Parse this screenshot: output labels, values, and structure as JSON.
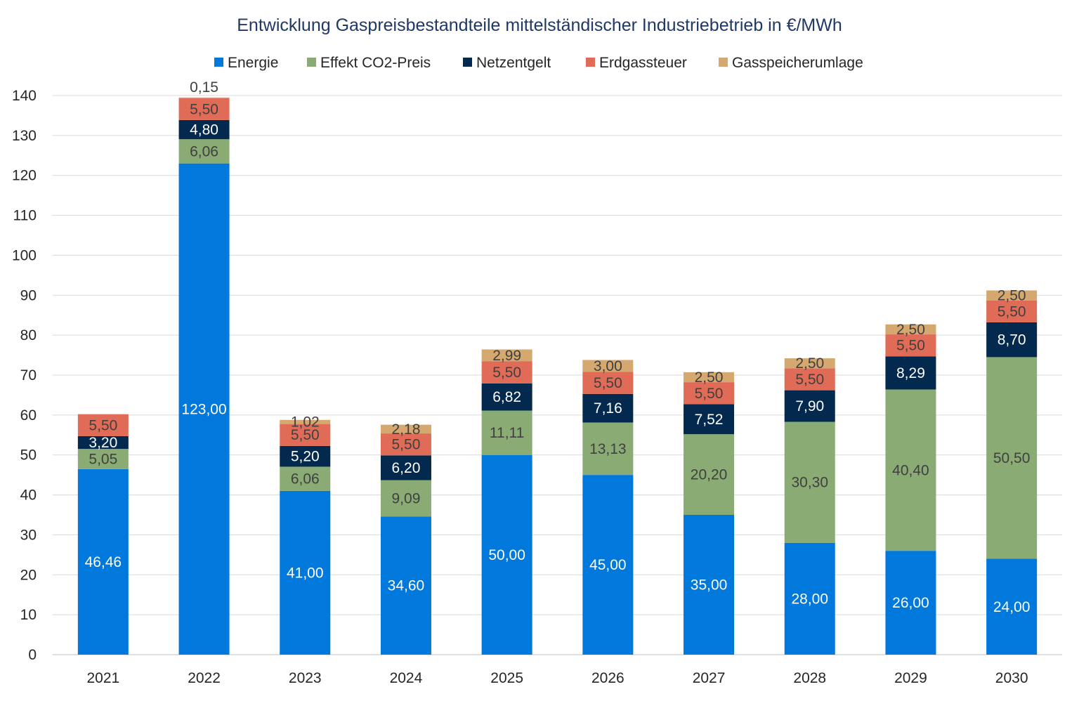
{
  "chart_data": {
    "type": "bar",
    "stacked": true,
    "title": "Entwicklung Gaspreisbestandteile mittelständischer Industriebetrieb in €/MWh",
    "xlabel": "",
    "ylabel": "",
    "ylim": [
      0,
      140
    ],
    "yticks": [
      0,
      10,
      20,
      30,
      40,
      50,
      60,
      70,
      80,
      90,
      100,
      110,
      120,
      130,
      140
    ],
    "grid": true,
    "legend_position": "top",
    "categories": [
      "2021",
      "2022",
      "2023",
      "2024",
      "2025",
      "2026",
      "2027",
      "2028",
      "2029",
      "2030"
    ],
    "series": [
      {
        "name": "Energie",
        "color": "#0078DC",
        "label_color": "#ffffff",
        "values": [
          46.46,
          123.0,
          41.0,
          34.6,
          50.0,
          45.0,
          35.0,
          28.0,
          26.0,
          24.0
        ]
      },
      {
        "name": "Effekt CO2-Preis",
        "color": "#8AAB73",
        "label_color": "#404040",
        "values": [
          5.05,
          6.06,
          6.06,
          9.09,
          11.11,
          13.13,
          20.2,
          30.3,
          40.4,
          50.5
        ]
      },
      {
        "name": "Netzentgelt",
        "color": "#03294F",
        "label_color": "#ffffff",
        "values": [
          3.2,
          4.8,
          5.2,
          6.2,
          6.82,
          7.16,
          7.52,
          7.9,
          8.29,
          8.7
        ]
      },
      {
        "name": "Erdgassteuer",
        "color": "#E06C58",
        "label_color": "#404040",
        "values": [
          5.5,
          5.5,
          5.5,
          5.5,
          5.5,
          5.5,
          5.5,
          5.5,
          5.5,
          5.5
        ]
      },
      {
        "name": "Gasspeicherumlage",
        "color": "#D4A86F",
        "label_color": "#404040",
        "values": [
          null,
          0.15,
          1.02,
          2.18,
          2.99,
          3.0,
          2.5,
          2.5,
          2.5,
          2.5
        ]
      }
    ]
  }
}
